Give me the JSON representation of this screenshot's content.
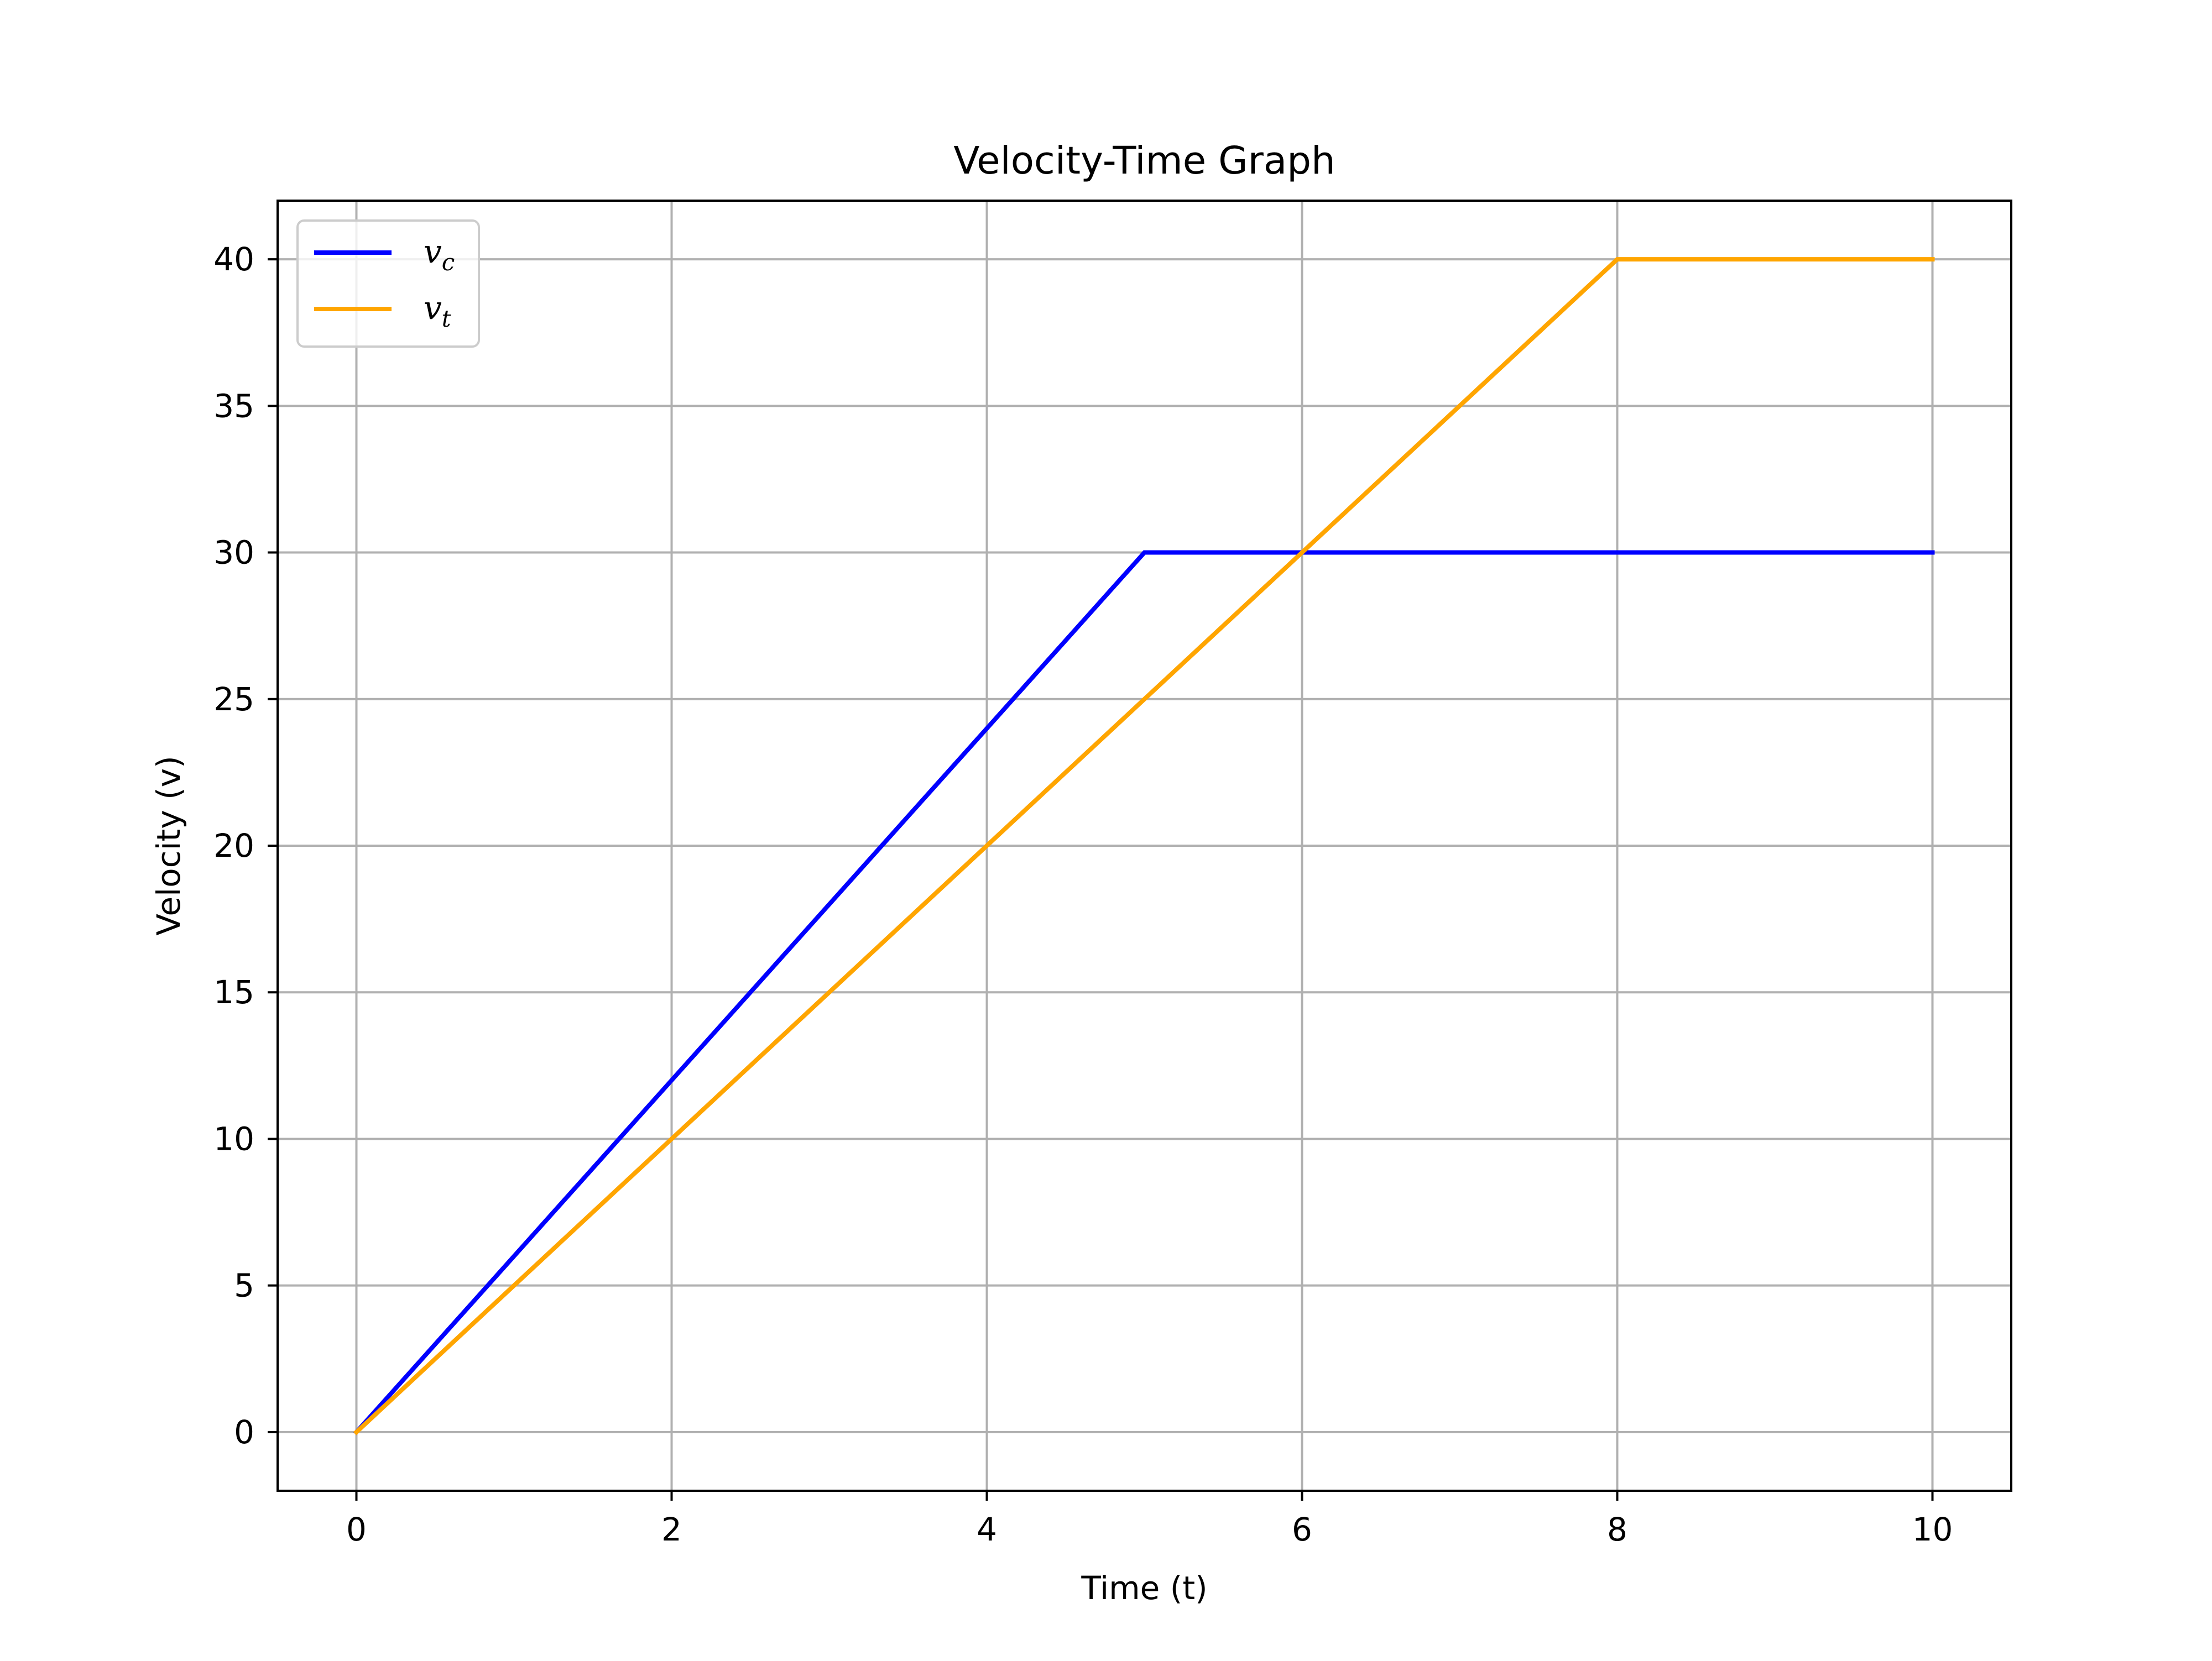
{
  "chart_data": {
    "type": "line",
    "title": "Velocity-Time Graph",
    "xlabel": "Time (t)",
    "ylabel": "Velocity (v)",
    "xlim": [
      -0.5,
      10.5
    ],
    "ylim": [
      -2,
      42
    ],
    "xticks": [
      0,
      2,
      4,
      6,
      8,
      10
    ],
    "yticks": [
      0,
      5,
      10,
      15,
      20,
      25,
      30,
      35,
      40
    ],
    "grid": true,
    "legend_position": "top-left",
    "series": [
      {
        "name": "v",
        "subscript": "c",
        "color": "#0000ff",
        "x": [
          0,
          5,
          10
        ],
        "y": [
          0,
          30,
          30
        ]
      },
      {
        "name": "v",
        "subscript": "t",
        "color": "#ffa500",
        "x": [
          0,
          8,
          10
        ],
        "y": [
          0,
          40,
          40
        ]
      }
    ]
  }
}
